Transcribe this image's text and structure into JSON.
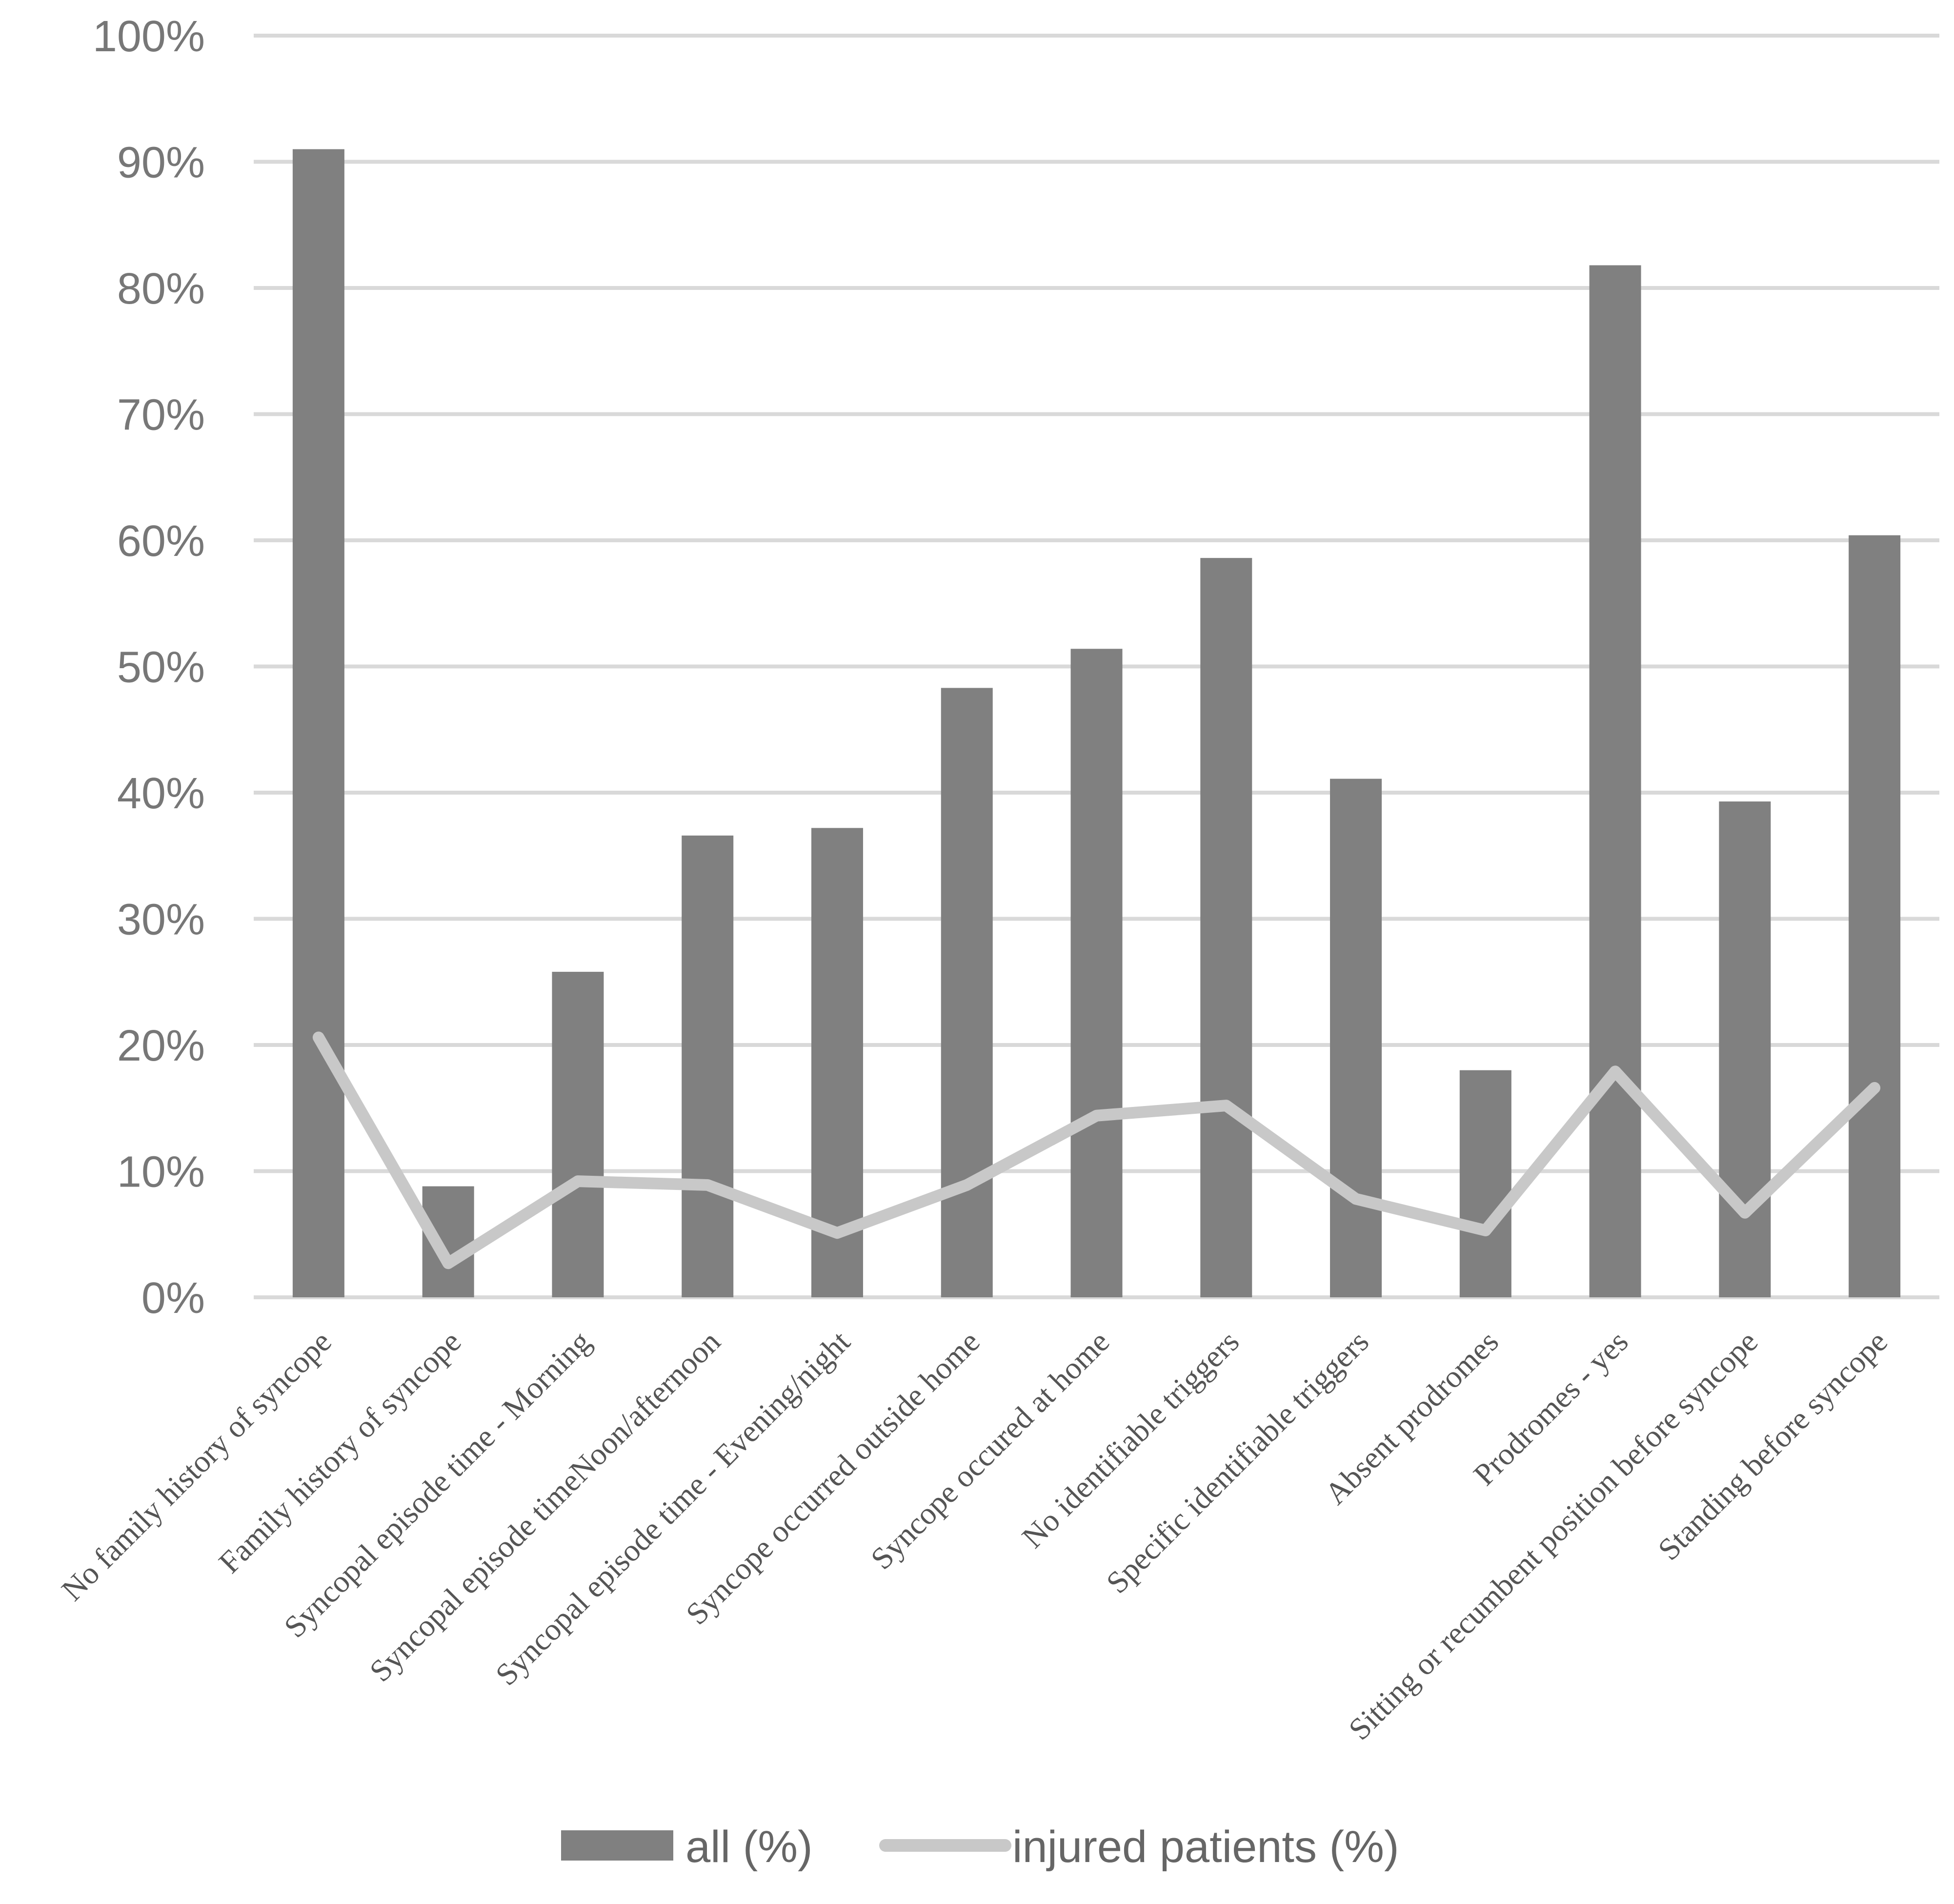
{
  "chart_data": {
    "type": "bar",
    "categories": [
      "No family history of syncope",
      "Family history of syncope",
      "Syncopal episode time - Morning",
      "Syncopal episode timeNoon/afternoon",
      "Syncopal episode time - Evening/night",
      "Syncope occurred outside home",
      "Syncope occured at home",
      "No  identifiable triggers",
      "Specific identifiable triggers",
      "Absent prodromes",
      "Prodromes - yes",
      "Sitting or recumbent position before syncope",
      "Standing  before syncope"
    ],
    "series": [
      {
        "name": "all (%)",
        "type": "bar",
        "color": "#808080",
        "values": [
          91,
          8.8,
          25.8,
          36.6,
          37.2,
          48.3,
          51.4,
          58.6,
          41.1,
          18.0,
          81.8,
          39.3,
          60.4
        ]
      },
      {
        "name": "injured patients (%)",
        "type": "line",
        "color": "#c8c8c8",
        "values": [
          20.6,
          2.7,
          9.2,
          8.9,
          5.1,
          8.9,
          14.4,
          15.2,
          7.8,
          5.3,
          17.9,
          6.7,
          16.6
        ]
      }
    ],
    "yticks": [
      "0%",
      "10%",
      "20%",
      "30%",
      "40%",
      "50%",
      "60%",
      "70%",
      "80%",
      "90%",
      "100%"
    ],
    "ylim": [
      0,
      100
    ],
    "grid": true,
    "legend_position": "bottom",
    "colors": {
      "gridline": "#d9d9d9",
      "axis": "#d9d9d9"
    }
  }
}
